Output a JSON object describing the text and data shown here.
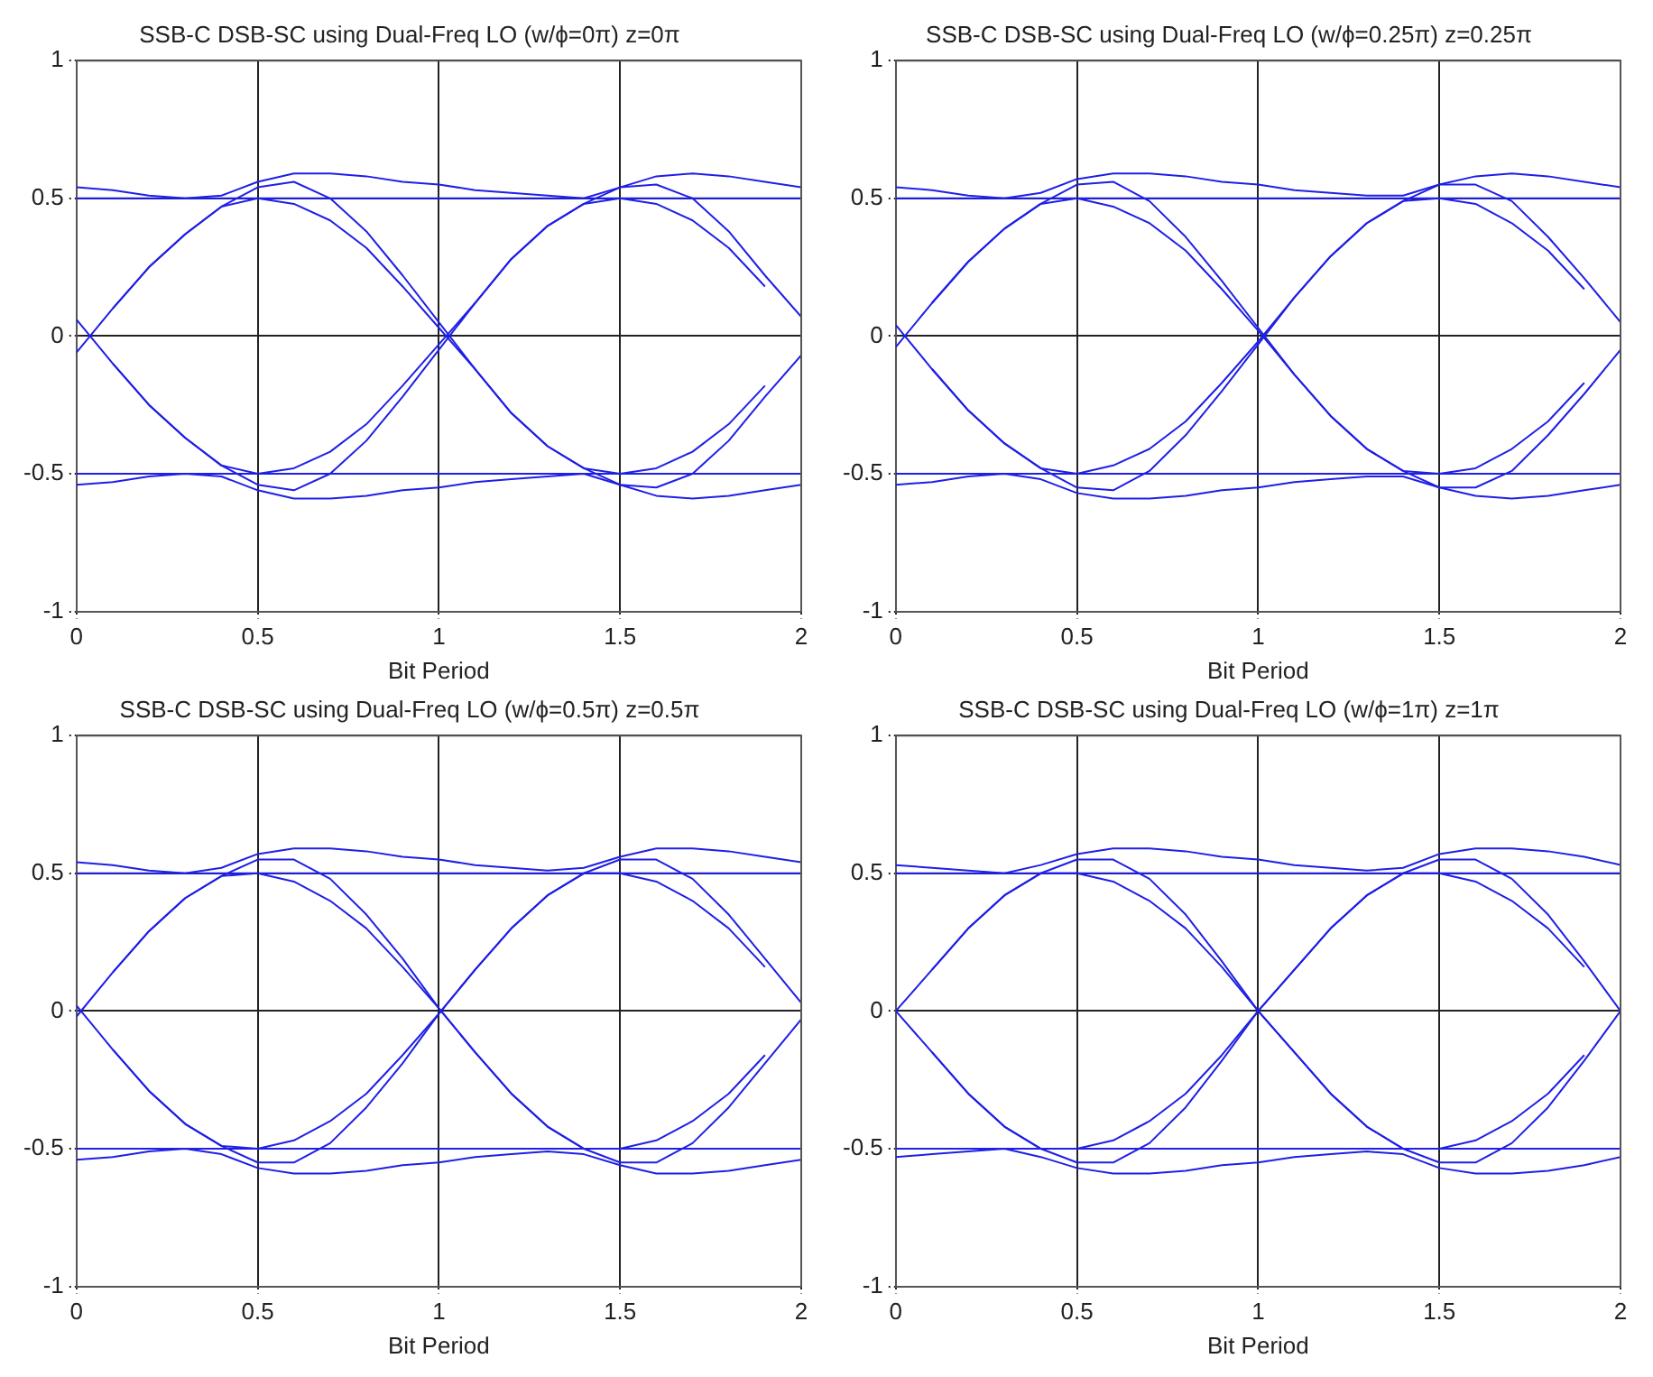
{
  "chart_data": [
    {
      "type": "line",
      "title": "SSB-C DSB-SC using Dual-Freq LO (w/ϕ=0π) z=0π",
      "xlabel": "Bit Period",
      "xlim": [
        0,
        2
      ],
      "xticks": [
        0,
        0.5,
        1,
        1.5,
        2
      ],
      "ylim": [
        -1,
        1
      ],
      "yticks": [
        -1,
        -0.5,
        0,
        0.5,
        1
      ],
      "grid": true,
      "x": [
        0,
        0.1,
        0.2,
        0.3,
        0.4,
        0.5,
        0.6,
        0.7,
        0.8,
        0.9,
        1,
        1.1,
        1.2,
        1.3,
        1.4,
        1.5,
        1.6,
        1.7,
        1.8,
        1.9,
        2
      ],
      "series": [
        {
          "color": "#1f1fe6",
          "values": [
            -0.06,
            0.1,
            0.25,
            0.37,
            0.47,
            0.54,
            0.56,
            0.5,
            0.38,
            0.22,
            0.05,
            -0.12,
            -0.28,
            -0.4,
            -0.48,
            -0.54,
            -0.55,
            -0.5,
            -0.38,
            -0.22,
            -0.07
          ]
        },
        {
          "color": "#1f1fe6",
          "values": [
            null,
            0.1,
            0.25,
            0.37,
            0.47,
            0.5,
            0.48,
            0.42,
            0.32,
            0.18,
            0.03,
            -0.12,
            -0.28,
            -0.4,
            -0.48,
            -0.5,
            -0.48,
            -0.42,
            -0.32,
            -0.18,
            null
          ]
        },
        {
          "color": "#1f1fe6",
          "values": [
            0.54,
            0.53,
            0.51,
            0.5,
            0.51,
            0.56,
            0.59,
            0.59,
            0.58,
            0.56,
            0.55,
            0.53,
            0.52,
            0.51,
            0.5,
            0.54,
            0.58,
            0.59,
            0.58,
            0.56,
            0.54
          ]
        },
        {
          "color": "#1f1fe6",
          "values": [
            0.5,
            0.5,
            0.5,
            0.5,
            0.5,
            0.5,
            0.5,
            0.5,
            0.5,
            0.5,
            0.5,
            0.5,
            0.5,
            0.5,
            0.5,
            0.5,
            0.5,
            0.5,
            0.5,
            0.5,
            0.5
          ]
        },
        {
          "color": "#1f1fe6",
          "values": [
            null,
            -0.1,
            -0.25,
            -0.37,
            -0.47,
            -0.54,
            -0.56,
            -0.5,
            -0.38,
            -0.22,
            -0.05,
            0.12,
            0.28,
            0.4,
            0.48,
            0.54,
            0.55,
            0.5,
            0.38,
            0.22,
            0.07
          ]
        },
        {
          "color": "#1f1fe6",
          "values": [
            0.06,
            -0.1,
            -0.25,
            -0.37,
            -0.47,
            -0.5,
            -0.48,
            -0.42,
            -0.32,
            -0.18,
            -0.03,
            0.12,
            0.28,
            0.4,
            0.48,
            0.5,
            0.48,
            0.42,
            0.32,
            0.18,
            null
          ]
        },
        {
          "color": "#1f1fe6",
          "values": [
            -0.54,
            -0.53,
            -0.51,
            -0.5,
            -0.51,
            -0.56,
            -0.59,
            -0.59,
            -0.58,
            -0.56,
            -0.55,
            -0.53,
            -0.52,
            -0.51,
            -0.5,
            -0.54,
            -0.58,
            -0.59,
            -0.58,
            -0.56,
            -0.54
          ]
        },
        {
          "color": "#1f1fe6",
          "values": [
            -0.5,
            -0.5,
            -0.5,
            -0.5,
            -0.5,
            -0.5,
            -0.5,
            -0.5,
            -0.5,
            -0.5,
            -0.5,
            -0.5,
            -0.5,
            -0.5,
            -0.5,
            -0.5,
            -0.5,
            -0.5,
            -0.5,
            -0.5,
            -0.5
          ]
        }
      ]
    },
    {
      "type": "line",
      "title": "SSB-C DSB-SC using Dual-Freq LO (w/ϕ=0.25π) z=0.25π",
      "xlabel": "Bit Period",
      "xlim": [
        0,
        2
      ],
      "xticks": [
        0,
        0.5,
        1,
        1.5,
        2
      ],
      "ylim": [
        -1,
        1
      ],
      "yticks": [
        -1,
        -0.5,
        0,
        0.5,
        1
      ],
      "grid": true,
      "x": [
        0,
        0.1,
        0.2,
        0.3,
        0.4,
        0.5,
        0.6,
        0.7,
        0.8,
        0.9,
        1,
        1.1,
        1.2,
        1.3,
        1.4,
        1.5,
        1.6,
        1.7,
        1.8,
        1.9,
        2
      ],
      "series": [
        {
          "color": "#1f1fe6",
          "values": [
            -0.04,
            0.12,
            0.27,
            0.39,
            0.48,
            0.55,
            0.56,
            0.49,
            0.36,
            0.2,
            0.03,
            -0.14,
            -0.29,
            -0.41,
            -0.49,
            -0.55,
            -0.55,
            -0.49,
            -0.36,
            -0.21,
            -0.05
          ]
        },
        {
          "color": "#1f1fe6",
          "values": [
            null,
            0.12,
            0.27,
            0.39,
            0.48,
            0.5,
            0.47,
            0.41,
            0.31,
            0.17,
            0.02,
            -0.14,
            -0.29,
            -0.41,
            -0.49,
            -0.5,
            -0.48,
            -0.41,
            -0.31,
            -0.17,
            null
          ]
        },
        {
          "color": "#1f1fe6",
          "values": [
            0.54,
            0.53,
            0.51,
            0.5,
            0.52,
            0.57,
            0.59,
            0.59,
            0.58,
            0.56,
            0.55,
            0.53,
            0.52,
            0.51,
            0.51,
            0.55,
            0.58,
            0.59,
            0.58,
            0.56,
            0.54
          ]
        },
        {
          "color": "#1f1fe6",
          "values": [
            0.5,
            0.5,
            0.5,
            0.5,
            0.5,
            0.5,
            0.5,
            0.5,
            0.5,
            0.5,
            0.5,
            0.5,
            0.5,
            0.5,
            0.5,
            0.5,
            0.5,
            0.5,
            0.5,
            0.5,
            0.5
          ]
        },
        {
          "color": "#1f1fe6",
          "values": [
            null,
            -0.12,
            -0.27,
            -0.39,
            -0.48,
            -0.55,
            -0.56,
            -0.49,
            -0.36,
            -0.2,
            -0.03,
            0.14,
            0.29,
            0.41,
            0.49,
            0.55,
            0.55,
            0.49,
            0.36,
            0.21,
            0.05
          ]
        },
        {
          "color": "#1f1fe6",
          "values": [
            0.04,
            -0.12,
            -0.27,
            -0.39,
            -0.48,
            -0.5,
            -0.47,
            -0.41,
            -0.31,
            -0.17,
            -0.02,
            0.14,
            0.29,
            0.41,
            0.49,
            0.5,
            0.48,
            0.41,
            0.31,
            0.17,
            null
          ]
        },
        {
          "color": "#1f1fe6",
          "values": [
            -0.54,
            -0.53,
            -0.51,
            -0.5,
            -0.52,
            -0.57,
            -0.59,
            -0.59,
            -0.58,
            -0.56,
            -0.55,
            -0.53,
            -0.52,
            -0.51,
            -0.51,
            -0.55,
            -0.58,
            -0.59,
            -0.58,
            -0.56,
            -0.54
          ]
        },
        {
          "color": "#1f1fe6",
          "values": [
            -0.5,
            -0.5,
            -0.5,
            -0.5,
            -0.5,
            -0.5,
            -0.5,
            -0.5,
            -0.5,
            -0.5,
            -0.5,
            -0.5,
            -0.5,
            -0.5,
            -0.5,
            -0.5,
            -0.5,
            -0.5,
            -0.5,
            -0.5,
            -0.5
          ]
        }
      ]
    },
    {
      "type": "line",
      "title": "SSB-C DSB-SC using Dual-Freq LO (w/ϕ=0.5π) z=0.5π",
      "xlabel": "Bit Period",
      "xlim": [
        0,
        2
      ],
      "xticks": [
        0,
        0.5,
        1,
        1.5,
        2
      ],
      "ylim": [
        -1,
        1
      ],
      "yticks": [
        -1,
        -0.5,
        0,
        0.5,
        1
      ],
      "grid": true,
      "x": [
        0,
        0.1,
        0.2,
        0.3,
        0.4,
        0.5,
        0.6,
        0.7,
        0.8,
        0.9,
        1,
        1.1,
        1.2,
        1.3,
        1.4,
        1.5,
        1.6,
        1.7,
        1.8,
        1.9,
        2
      ],
      "series": [
        {
          "color": "#1f1fe6",
          "values": [
            -0.02,
            0.14,
            0.29,
            0.41,
            0.49,
            0.55,
            0.55,
            0.48,
            0.35,
            0.19,
            0.01,
            -0.15,
            -0.3,
            -0.42,
            -0.5,
            -0.55,
            -0.55,
            -0.48,
            -0.35,
            -0.19,
            -0.03
          ]
        },
        {
          "color": "#1f1fe6",
          "values": [
            null,
            0.14,
            0.29,
            0.41,
            0.49,
            0.5,
            0.47,
            0.4,
            0.3,
            0.16,
            0.01,
            -0.15,
            -0.3,
            -0.42,
            -0.5,
            -0.5,
            -0.47,
            -0.4,
            -0.3,
            -0.16,
            null
          ]
        },
        {
          "color": "#1f1fe6",
          "values": [
            0.54,
            0.53,
            0.51,
            0.5,
            0.52,
            0.57,
            0.59,
            0.59,
            0.58,
            0.56,
            0.55,
            0.53,
            0.52,
            0.51,
            0.52,
            0.56,
            0.59,
            0.59,
            0.58,
            0.56,
            0.54
          ]
        },
        {
          "color": "#1f1fe6",
          "values": [
            0.5,
            0.5,
            0.5,
            0.5,
            0.5,
            0.5,
            0.5,
            0.5,
            0.5,
            0.5,
            0.5,
            0.5,
            0.5,
            0.5,
            0.5,
            0.5,
            0.5,
            0.5,
            0.5,
            0.5,
            0.5
          ]
        },
        {
          "color": "#1f1fe6",
          "values": [
            null,
            -0.14,
            -0.29,
            -0.41,
            -0.49,
            -0.55,
            -0.55,
            -0.48,
            -0.35,
            -0.19,
            -0.01,
            0.15,
            0.3,
            0.42,
            0.5,
            0.55,
            0.55,
            0.48,
            0.35,
            0.19,
            0.03
          ]
        },
        {
          "color": "#1f1fe6",
          "values": [
            0.02,
            -0.14,
            -0.29,
            -0.41,
            -0.49,
            -0.5,
            -0.47,
            -0.4,
            -0.3,
            -0.16,
            -0.01,
            0.15,
            0.3,
            0.42,
            0.5,
            0.5,
            0.47,
            0.4,
            0.3,
            0.16,
            null
          ]
        },
        {
          "color": "#1f1fe6",
          "values": [
            -0.54,
            -0.53,
            -0.51,
            -0.5,
            -0.52,
            -0.57,
            -0.59,
            -0.59,
            -0.58,
            -0.56,
            -0.55,
            -0.53,
            -0.52,
            -0.51,
            -0.52,
            -0.56,
            -0.59,
            -0.59,
            -0.58,
            -0.56,
            -0.54
          ]
        },
        {
          "color": "#1f1fe6",
          "values": [
            -0.5,
            -0.5,
            -0.5,
            -0.5,
            -0.5,
            -0.5,
            -0.5,
            -0.5,
            -0.5,
            -0.5,
            -0.5,
            -0.5,
            -0.5,
            -0.5,
            -0.5,
            -0.5,
            -0.5,
            -0.5,
            -0.5,
            -0.5,
            -0.5
          ]
        }
      ]
    },
    {
      "type": "line",
      "title": "SSB-C DSB-SC using Dual-Freq LO (w/ϕ=1π) z=1π",
      "xlabel": "Bit Period",
      "xlim": [
        0,
        2
      ],
      "xticks": [
        0,
        0.5,
        1,
        1.5,
        2
      ],
      "ylim": [
        -1,
        1
      ],
      "yticks": [
        -1,
        -0.5,
        0,
        0.5,
        1
      ],
      "grid": true,
      "x": [
        0,
        0.1,
        0.2,
        0.3,
        0.4,
        0.5,
        0.6,
        0.7,
        0.8,
        0.9,
        1,
        1.1,
        1.2,
        1.3,
        1.4,
        1.5,
        1.6,
        1.7,
        1.8,
        1.9,
        2
      ],
      "series": [
        {
          "color": "#1f1fe6",
          "values": [
            0,
            0.15,
            0.3,
            0.42,
            0.5,
            0.55,
            0.55,
            0.48,
            0.35,
            0.18,
            0,
            -0.15,
            -0.3,
            -0.42,
            -0.5,
            -0.55,
            -0.55,
            -0.48,
            -0.35,
            -0.18,
            0
          ]
        },
        {
          "color": "#1f1fe6",
          "values": [
            null,
            0.15,
            0.3,
            0.42,
            0.5,
            0.5,
            0.47,
            0.4,
            0.3,
            0.16,
            0,
            -0.15,
            -0.3,
            -0.42,
            -0.5,
            -0.5,
            -0.47,
            -0.4,
            -0.3,
            -0.16,
            null
          ]
        },
        {
          "color": "#1f1fe6",
          "values": [
            0.53,
            0.52,
            0.51,
            0.5,
            0.53,
            0.57,
            0.59,
            0.59,
            0.58,
            0.56,
            0.55,
            0.53,
            0.52,
            0.51,
            0.52,
            0.57,
            0.59,
            0.59,
            0.58,
            0.56,
            0.53
          ]
        },
        {
          "color": "#1f1fe6",
          "values": [
            0.5,
            0.5,
            0.5,
            0.5,
            0.5,
            0.5,
            0.5,
            0.5,
            0.5,
            0.5,
            0.5,
            0.5,
            0.5,
            0.5,
            0.5,
            0.5,
            0.5,
            0.5,
            0.5,
            0.5,
            0.5
          ]
        },
        {
          "color": "#1f1fe6",
          "values": [
            null,
            -0.15,
            -0.3,
            -0.42,
            -0.5,
            -0.55,
            -0.55,
            -0.48,
            -0.35,
            -0.18,
            0,
            0.15,
            0.3,
            0.42,
            0.5,
            0.55,
            0.55,
            0.48,
            0.35,
            0.18,
            0
          ]
        },
        {
          "color": "#1f1fe6",
          "values": [
            0,
            -0.15,
            -0.3,
            -0.42,
            -0.5,
            -0.5,
            -0.47,
            -0.4,
            -0.3,
            -0.16,
            0,
            0.15,
            0.3,
            0.42,
            0.5,
            0.5,
            0.47,
            0.4,
            0.3,
            0.16,
            null
          ]
        },
        {
          "color": "#1f1fe6",
          "values": [
            -0.53,
            -0.52,
            -0.51,
            -0.5,
            -0.53,
            -0.57,
            -0.59,
            -0.59,
            -0.58,
            -0.56,
            -0.55,
            -0.53,
            -0.52,
            -0.51,
            -0.52,
            -0.57,
            -0.59,
            -0.59,
            -0.58,
            -0.56,
            -0.53
          ]
        },
        {
          "color": "#1f1fe6",
          "values": [
            -0.5,
            -0.5,
            -0.5,
            -0.5,
            -0.5,
            -0.5,
            -0.5,
            -0.5,
            -0.5,
            -0.5,
            -0.5,
            -0.5,
            -0.5,
            -0.5,
            -0.5,
            -0.5,
            -0.5,
            -0.5,
            -0.5,
            -0.5,
            -0.5
          ]
        }
      ]
    }
  ]
}
